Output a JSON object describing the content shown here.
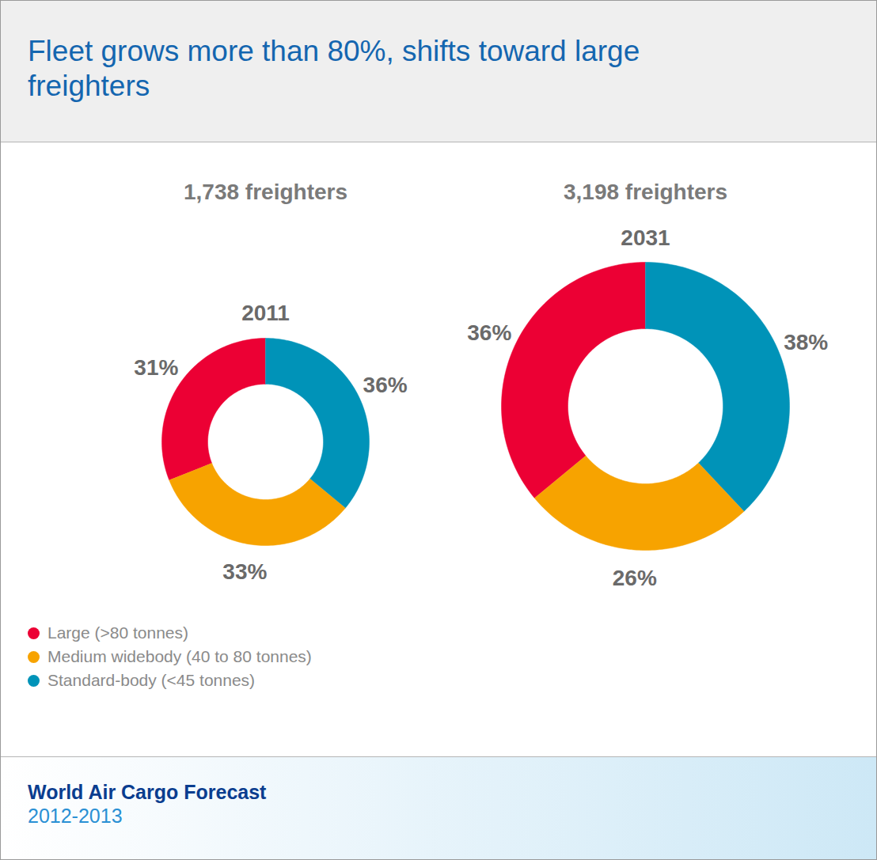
{
  "title": "Fleet grows more than 80%, shifts toward large freighters",
  "footer": {
    "title": "World Air Cargo Forecast",
    "subtitle": "2012-2013"
  },
  "chart_data": [
    {
      "type": "pie",
      "title": "2011",
      "subtitle": "1,738 freighters",
      "categories": [
        "Large (>80 tonnes)",
        "Medium widebody (40 to 80 tonnes)",
        "Standard-body (<45 tonnes)"
      ],
      "values": [
        31,
        33,
        36
      ],
      "value_labels": [
        "31%",
        "33%",
        "36%"
      ],
      "colors": [
        "#ec0034",
        "#f7a300",
        "#0093b8"
      ],
      "data_labels": true,
      "legend": "bottom",
      "tick_labels": false
    },
    {
      "type": "pie",
      "title": "2031",
      "subtitle": "3,198 freighters",
      "categories": [
        "Large (>80 tonnes)",
        "Medium widebody (40 to 80 tonnes)",
        "Standard-body (<45 tonnes)"
      ],
      "values": [
        36,
        26,
        38
      ],
      "value_labels": [
        "36%",
        "26%",
        "38%"
      ],
      "colors": [
        "#ec0034",
        "#f7a300",
        "#0093b8"
      ],
      "data_labels": true,
      "legend": "bottom",
      "tick_labels": false
    }
  ]
}
